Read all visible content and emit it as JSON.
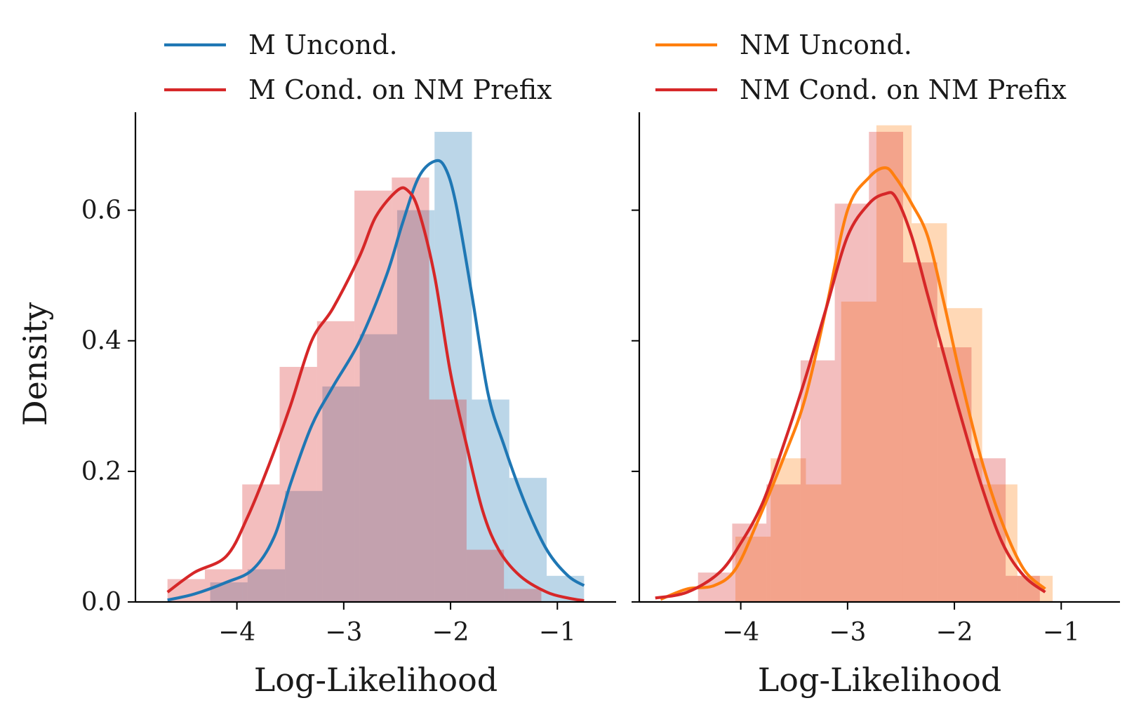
{
  "chart_data": [
    {
      "type": "histogram+kde",
      "panel": "left",
      "xlabel": "Log-Likelihood",
      "ylabel": "Density",
      "xlim": [
        -4.95,
        -0.45
      ],
      "ylim": [
        0,
        0.75
      ],
      "xticks": [
        -4,
        -3,
        -2,
        -1
      ],
      "xtick_labels": [
        "−4",
        "−3",
        "−2",
        "−1"
      ],
      "yticks": [
        0.0,
        0.2,
        0.4,
        0.6
      ],
      "ytick_labels": [
        "0.0",
        "0.2",
        "0.4",
        "0.6"
      ],
      "legend": {
        "placement": "above-left",
        "entries": [
          "M Uncond.",
          "M Cond. on NM Prefix"
        ]
      },
      "series": [
        {
          "name": "M Uncond.",
          "color": "#1f77b4",
          "hist": {
            "edges": [
              -4.25,
              -3.9,
              -3.55,
              -3.2,
              -2.85,
              -2.5,
              -2.15,
              -1.8,
              -1.45,
              -1.1,
              -0.75
            ],
            "values": [
              0.03,
              0.05,
              0.17,
              0.33,
              0.41,
              0.6,
              0.72,
              0.31,
              0.19,
              0.04
            ]
          },
          "kde": {
            "x": [
              -4.65,
              -4.4,
              -4.1,
              -3.85,
              -3.65,
              -3.5,
              -3.3,
              -3.1,
              -2.85,
              -2.6,
              -2.45,
              -2.3,
              -2.15,
              -2.05,
              -1.95,
              -1.8,
              -1.65,
              -1.5,
              -1.3,
              -1.1,
              -0.9,
              -0.75
            ],
            "y": [
              0.003,
              0.012,
              0.03,
              0.05,
              0.1,
              0.18,
              0.27,
              0.33,
              0.4,
              0.5,
              0.58,
              0.65,
              0.675,
              0.665,
              0.61,
              0.47,
              0.32,
              0.24,
              0.15,
              0.08,
              0.04,
              0.025
            ]
          }
        },
        {
          "name": "M Cond. on NM Prefix",
          "color": "#d62728",
          "hist": {
            "edges": [
              -4.65,
              -4.3,
              -3.95,
              -3.6,
              -3.25,
              -2.9,
              -2.55,
              -2.2,
              -1.85,
              -1.5,
              -1.15
            ],
            "values": [
              0.035,
              0.05,
              0.18,
              0.36,
              0.43,
              0.63,
              0.65,
              0.31,
              0.08,
              0.02
            ]
          },
          "kde": {
            "x": [
              -4.65,
              -4.4,
              -4.1,
              -3.9,
              -3.7,
              -3.5,
              -3.3,
              -3.1,
              -2.85,
              -2.7,
              -2.5,
              -2.4,
              -2.3,
              -2.15,
              -2.0,
              -1.85,
              -1.7,
              -1.55,
              -1.35,
              -1.1,
              -0.9,
              -0.75
            ],
            "y": [
              0.015,
              0.045,
              0.07,
              0.13,
              0.21,
              0.3,
              0.4,
              0.45,
              0.53,
              0.59,
              0.63,
              0.63,
              0.6,
              0.5,
              0.35,
              0.24,
              0.14,
              0.08,
              0.04,
              0.015,
              0.006,
              0.002
            ]
          }
        }
      ]
    },
    {
      "type": "histogram+kde",
      "panel": "right",
      "xlabel": "Log-Likelihood",
      "ylabel": "",
      "xlim": [
        -4.95,
        -0.45
      ],
      "ylim": [
        0,
        0.75
      ],
      "xticks": [
        -4,
        -3,
        -2,
        -1
      ],
      "xtick_labels": [
        "−4",
        "−3",
        "−2",
        "−1"
      ],
      "yticks": [
        0.0,
        0.2,
        0.4,
        0.6
      ],
      "ytick_labels": [
        "",
        "",
        "",
        ""
      ],
      "legend": {
        "placement": "above-left",
        "entries": [
          "NM Uncond.",
          "NM Cond. on NM Prefix"
        ]
      },
      "series": [
        {
          "name": "NM Uncond.",
          "color": "#ff7f0e",
          "hist": {
            "edges": [
              -4.05,
              -3.72,
              -3.39,
              -3.06,
              -2.73,
              -2.4,
              -2.07,
              -1.74,
              -1.41,
              -1.08
            ],
            "values": [
              0.1,
              0.22,
              0.18,
              0.46,
              0.73,
              0.58,
              0.45,
              0.18,
              0.04
            ]
          },
          "kde": {
            "x": [
              -4.75,
              -4.5,
              -4.25,
              -4.05,
              -3.85,
              -3.6,
              -3.4,
              -3.2,
              -3.0,
              -2.8,
              -2.65,
              -2.55,
              -2.4,
              -2.25,
              -2.1,
              -1.95,
              -1.75,
              -1.55,
              -1.35,
              -1.15
            ],
            "y": [
              0.004,
              0.02,
              0.025,
              0.05,
              0.12,
              0.22,
              0.31,
              0.45,
              0.6,
              0.65,
              0.665,
              0.65,
              0.61,
              0.56,
              0.46,
              0.35,
              0.22,
              0.12,
              0.05,
              0.02
            ]
          }
        },
        {
          "name": "NM Cond. on NM Prefix",
          "color": "#d62728",
          "hist": {
            "edges": [
              -4.4,
              -4.08,
              -3.76,
              -3.44,
              -3.12,
              -2.8,
              -2.48,
              -2.16,
              -1.84,
              -1.52,
              -1.2
            ],
            "values": [
              0.045,
              0.12,
              0.18,
              0.37,
              0.61,
              0.72,
              0.52,
              0.39,
              0.22,
              0.04
            ]
          },
          "kde": {
            "x": [
              -4.8,
              -4.5,
              -4.2,
              -4.0,
              -3.8,
              -3.6,
              -3.4,
              -3.2,
              -3.0,
              -2.8,
              -2.65,
              -2.55,
              -2.4,
              -2.25,
              -2.1,
              -1.95,
              -1.75,
              -1.55,
              -1.35,
              -1.15
            ],
            "y": [
              0.006,
              0.015,
              0.045,
              0.09,
              0.15,
              0.24,
              0.34,
              0.45,
              0.56,
              0.61,
              0.625,
              0.62,
              0.56,
              0.47,
              0.38,
              0.29,
              0.18,
              0.09,
              0.04,
              0.015
            ]
          }
        }
      ]
    }
  ]
}
